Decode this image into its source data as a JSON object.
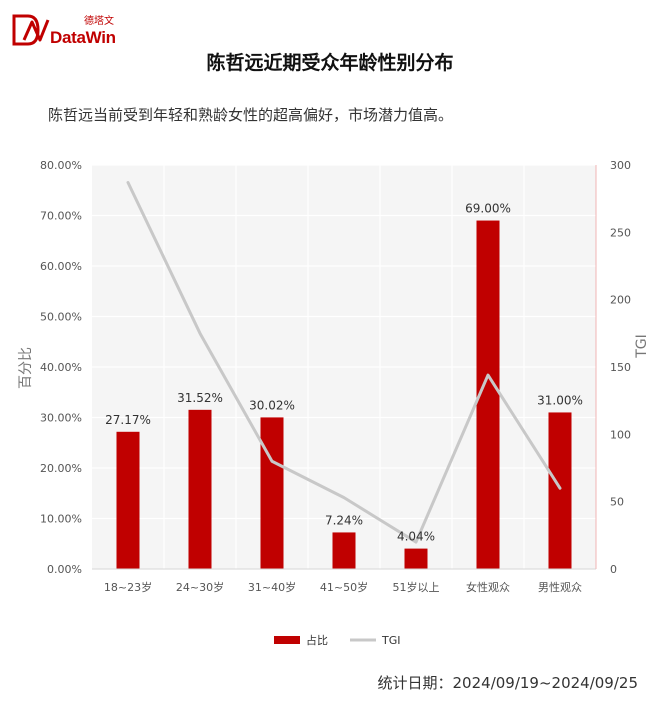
{
  "brand": {
    "name_cn": "德塔文",
    "name_en": "DataWin"
  },
  "title": "陈哲远近期受众年龄性别分布",
  "subtitle": "陈哲远当前受到年轻和熟龄女性的超高偏好，市场潜力值高。",
  "footer": "统计日期：2024/09/19~2024/09/25",
  "colors": {
    "bar": "#c00000",
    "line": "#c8c8c8",
    "brand": "#c00000"
  },
  "chart_data": {
    "type": "bar",
    "categories": [
      "18~23岁",
      "24~30岁",
      "31~40岁",
      "41~50岁",
      "51岁以上",
      "女性观众",
      "男性观众"
    ],
    "series": [
      {
        "name": "占比",
        "type": "bar",
        "axis": "left",
        "values": [
          27.17,
          31.52,
          30.02,
          7.24,
          4.04,
          69.0,
          31.0
        ],
        "labels": [
          "27.17%",
          "31.52%",
          "30.02%",
          "7.24%",
          "4.04%",
          "69.00%",
          "31.00%"
        ]
      },
      {
        "name": "TGI",
        "type": "line",
        "axis": "right",
        "values": [
          287,
          175,
          80,
          53,
          20,
          144,
          60
        ]
      }
    ],
    "ylabel": "百分比",
    "y2label": "TGI",
    "ylim": [
      0,
      80
    ],
    "y2lim": [
      0,
      300
    ],
    "yticks": [
      "0.00%",
      "10.00%",
      "20.00%",
      "30.00%",
      "40.00%",
      "50.00%",
      "60.00%",
      "70.00%",
      "80.00%"
    ],
    "y2ticks": [
      "0",
      "50",
      "100",
      "150",
      "200",
      "250",
      "300"
    ],
    "legend": {
      "position": "bottom"
    },
    "grid": true
  }
}
